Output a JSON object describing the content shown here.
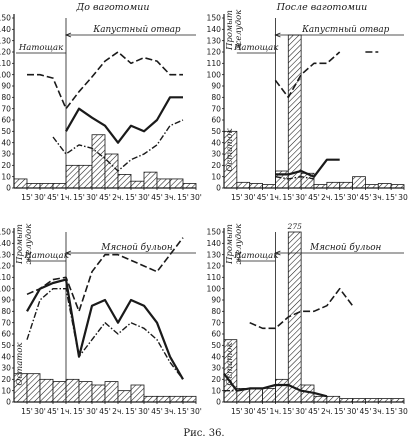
{
  "figure": {
    "caption": "Рис. 36."
  },
  "axes": {
    "y_ticks": [
      "0",
      "10",
      "20",
      "30",
      "40",
      "50",
      "60",
      "70",
      "80",
      "90",
      "100",
      "110",
      "120",
      "130",
      "140",
      "150"
    ],
    "x_ticks_top": [
      "15'",
      "30'",
      "45'",
      "1ч.",
      "15'",
      "30'",
      "45'",
      "2ч.",
      "15'",
      "30'",
      "45'",
      "3ч.",
      "15'",
      "30'"
    ],
    "x_ticks_bottom": [
      "15'",
      "30'",
      "45'",
      "1ч.",
      "15'",
      "30'",
      "45'",
      "2ч.",
      "15'",
      "30'",
      "45'",
      "3ч.",
      "15'",
      "30'"
    ]
  },
  "colors": {
    "ink": "#1a1a1a",
    "paper": "#ffffff"
  },
  "chart_data": [
    {
      "type": "line",
      "title": "До ваготомии",
      "annotations": [
        "Натощак",
        "Капустный отвар"
      ],
      "x": [
        "0",
        "15'",
        "30'",
        "45'",
        "1ч.",
        "15'",
        "30'",
        "45'",
        "2ч.",
        "15'",
        "30'",
        "45'",
        "3ч.",
        "15'",
        "30'"
      ],
      "ylim": [
        0,
        150
      ],
      "bars": [
        8,
        4,
        4,
        4,
        20,
        20,
        47,
        30,
        12,
        6,
        14,
        8,
        8,
        4,
        4
      ],
      "series": [
        {
          "style": "long-dash",
          "values": [
            null,
            100,
            100,
            97,
            70,
            85,
            98,
            112,
            120,
            110,
            115,
            112,
            100,
            100,
            null
          ]
        },
        {
          "style": "short-dash",
          "values": [
            null,
            70,
            null,
            78,
            null,
            null,
            null,
            null,
            null,
            null,
            null,
            null,
            null,
            null,
            null
          ]
        },
        {
          "style": "solid",
          "values": [
            null,
            null,
            null,
            null,
            50,
            70,
            62,
            55,
            40,
            55,
            50,
            60,
            80,
            80,
            null
          ]
        },
        {
          "style": "dash-dot",
          "values": [
            null,
            40,
            null,
            45,
            30,
            38,
            35,
            26,
            15,
            25,
            30,
            38,
            55,
            60,
            null
          ]
        }
      ]
    },
    {
      "type": "line",
      "title": "После ваготомии",
      "annotations": [
        "Натощак",
        "Капустный отвар",
        "Остаток",
        "Промыт желудок"
      ],
      "x": [
        "0",
        "15'",
        "30'",
        "45'",
        "1ч.",
        "15'",
        "30'",
        "45'",
        "2ч.",
        "15'",
        "30'",
        "45'",
        "3ч.",
        "15'",
        "30'"
      ],
      "ylim": [
        0,
        150
      ],
      "bars": [
        50,
        5,
        4,
        3,
        15,
        135,
        13,
        3,
        5,
        5,
        10,
        3,
        4,
        3,
        null
      ],
      "series": [
        {
          "style": "long-dash",
          "values": [
            null,
            null,
            null,
            null,
            95,
            80,
            100,
            110,
            110,
            120,
            null,
            120,
            120,
            null,
            null
          ]
        },
        {
          "style": "solid",
          "values": [
            null,
            45,
            null,
            null,
            12,
            12,
            15,
            10,
            25,
            25,
            null,
            null,
            null,
            null,
            null
          ]
        },
        {
          "style": "dash-dot",
          "values": [
            null,
            40,
            null,
            null,
            10,
            8,
            10,
            8,
            null,
            null,
            null,
            null,
            null,
            null,
            null
          ]
        }
      ]
    },
    {
      "type": "line",
      "title": "",
      "annotations": [
        "Натощак",
        "Мясной бульон",
        "Остаток",
        "Промыт желудок"
      ],
      "x": [
        "0",
        "15'",
        "30'",
        "45'",
        "1ч.",
        "15'",
        "30'",
        "45'",
        "2ч.",
        "15'",
        "30'",
        "45'",
        "3ч.",
        "15'",
        "30'"
      ],
      "ylim": [
        0,
        150
      ],
      "bars": [
        25,
        25,
        20,
        18,
        20,
        18,
        15,
        18,
        10,
        15,
        5,
        5,
        5,
        5,
        5
      ],
      "series": [
        {
          "style": "long-dash",
          "values": [
            null,
            95,
            100,
            108,
            110,
            80,
            115,
            130,
            130,
            125,
            120,
            115,
            130,
            145,
            null
          ]
        },
        {
          "style": "solid",
          "values": [
            null,
            80,
            100,
            105,
            108,
            40,
            85,
            90,
            70,
            90,
            85,
            70,
            40,
            20,
            null
          ]
        },
        {
          "style": "dash-dot",
          "values": [
            null,
            55,
            90,
            100,
            100,
            40,
            55,
            70,
            60,
            70,
            65,
            55,
            35,
            20,
            null
          ]
        }
      ]
    },
    {
      "type": "line",
      "title": "",
      "annotations": [
        "Натощак",
        "Мясной бульон",
        "Остаток",
        "Промыт желудок",
        "275"
      ],
      "x": [
        "0",
        "15'",
        "30'",
        "45'",
        "1ч.",
        "15'",
        "30'",
        "45'",
        "2ч.",
        "15'",
        "30'",
        "45'",
        "3ч.",
        "15'",
        "30'"
      ],
      "ylim": [
        0,
        150
      ],
      "bars": [
        55,
        12,
        12,
        12,
        20,
        275,
        15,
        5,
        5,
        3,
        3,
        3,
        3,
        3,
        5
      ],
      "series": [
        {
          "style": "long-dash",
          "values": [
            98,
            null,
            70,
            65,
            65,
            75,
            80,
            80,
            85,
            100,
            85,
            null,
            null,
            null,
            null
          ]
        },
        {
          "style": "solid",
          "values": [
            25,
            10,
            12,
            12,
            15,
            15,
            10,
            8,
            5,
            null,
            null,
            null,
            null,
            null,
            null
          ]
        },
        {
          "style": "dash-dot",
          "values": [
            10,
            10,
            null,
            null,
            null,
            null,
            null,
            null,
            null,
            null,
            null,
            null,
            null,
            null,
            null
          ]
        }
      ]
    }
  ]
}
